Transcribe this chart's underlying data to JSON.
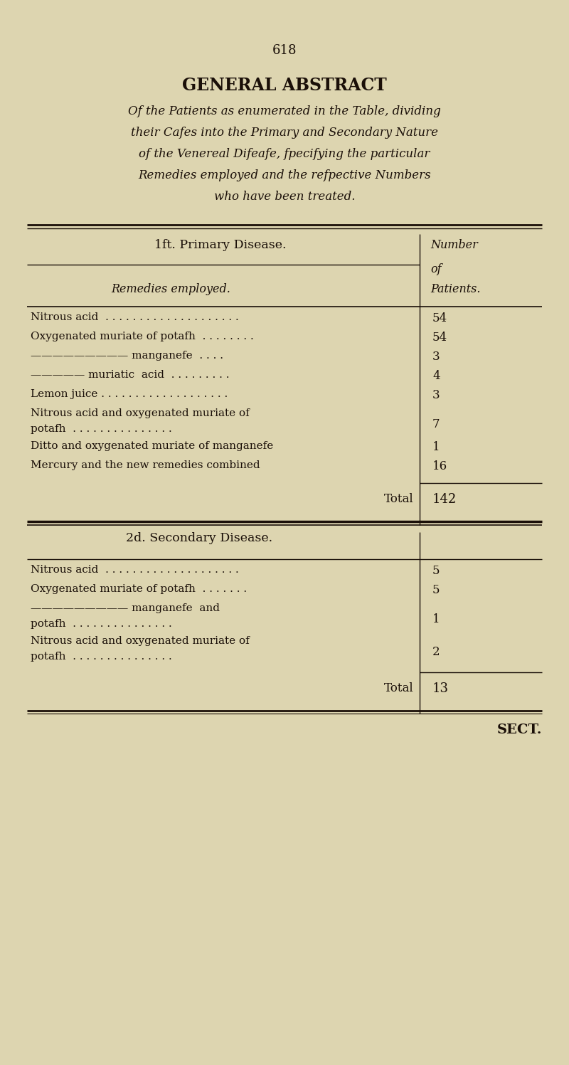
{
  "bg_color": "#ddd5b0",
  "text_color": "#1a0f08",
  "page_number": "618",
  "title": "GENERAL ABSTRACT",
  "subtitle_lines": [
    "Of the Patients as enumerated in the Table, dividing",
    "their Cafes into the Primary and Secondary Nature",
    "of the Venereal Difeafe, fpecifying the particular",
    "Remedies employed and the refpective Numbers",
    "who have been treated."
  ],
  "section1_header": "1ft. Primary Disease.",
  "col_header_left": "Remedies employed.",
  "col_header_right_1": "Number",
  "col_header_right_2": "of",
  "col_header_right_3": "Patients.",
  "primary_rows": [
    {
      "text": "Nitrous acid  . . . . . . . . . . . . . . . . . . . .",
      "value": "54",
      "multiline": false
    },
    {
      "text": "Oxygenated muriate of potafh  . . . . . . . .",
      "value": "54",
      "multiline": false
    },
    {
      "text": "————————— manganefe  . . . .",
      "value": "3",
      "multiline": false
    },
    {
      "text": "————— muriatic  acid  . . . . . . . . .",
      "value": "4",
      "multiline": false
    },
    {
      "text": "Lemon juice . . . . . . . . . . . . . . . . . . .",
      "value": "3",
      "multiline": false
    },
    {
      "text_line1": "Nitrous acid and oxygenated muriate of",
      "text_line2": "        potafh  . . . . . . . . . . . . . . .",
      "value": "7",
      "multiline": true
    },
    {
      "text": "Ditto and oxygenated muriate of manganefe",
      "value": "1",
      "multiline": false
    },
    {
      "text": "Mercury and the new remedies combined",
      "value": "16",
      "multiline": false
    }
  ],
  "primary_total": "142",
  "section2_header": "2d. Secondary Disease.",
  "secondary_rows": [
    {
      "text": "Nitrous acid  . . . . . . . . . . . . . . . . . . . .",
      "value": "5",
      "multiline": false
    },
    {
      "text": "Oxygenated muriate of potafh  . . . . . . .",
      "value": "5",
      "multiline": false
    },
    {
      "text_line1": "————————— manganefe  and",
      "text_line2": "        potafh  . . . . . . . . . . . . . . .",
      "value": "1",
      "multiline": true
    },
    {
      "text_line1": "Nitrous acid and oxygenated muriate of",
      "text_line2": "        potafh  . . . . . . . . . . . . . . .",
      "value": "2",
      "multiline": true
    }
  ],
  "secondary_total": "13",
  "footer": "SECT."
}
